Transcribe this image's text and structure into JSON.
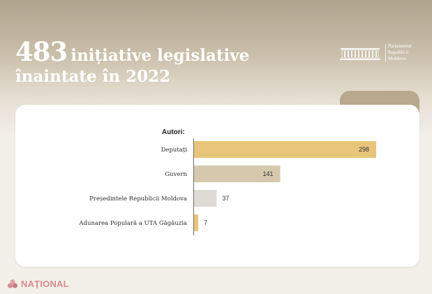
{
  "headline": {
    "number": "483",
    "line1": "inițiative legislative",
    "line2": "înaintate în 2022"
  },
  "logo": {
    "line1": "Parlamentul",
    "line2": "Republicii",
    "line3": "Moldova"
  },
  "brand": {
    "name": "NAȚIONAL"
  },
  "colors": {
    "bar_primary": "#e9c57a",
    "bar_secondary": "#d5c8ad",
    "bar_tertiary": "#dedad4",
    "bar_quaternary": "#e9c57a"
  },
  "chart_data": {
    "type": "bar",
    "orientation": "horizontal",
    "subtitle": "Autori:",
    "categories": [
      "Deputați",
      "Guvern",
      "Președintele Republicii Moldova",
      "Adunarea Populară a UTA Găgăuzia"
    ],
    "values": [
      298,
      141,
      37,
      7
    ],
    "data_labels": [
      "298",
      "141",
      "37",
      "7"
    ],
    "xlim": [
      0,
      300
    ],
    "grid": false,
    "legend": "none"
  }
}
